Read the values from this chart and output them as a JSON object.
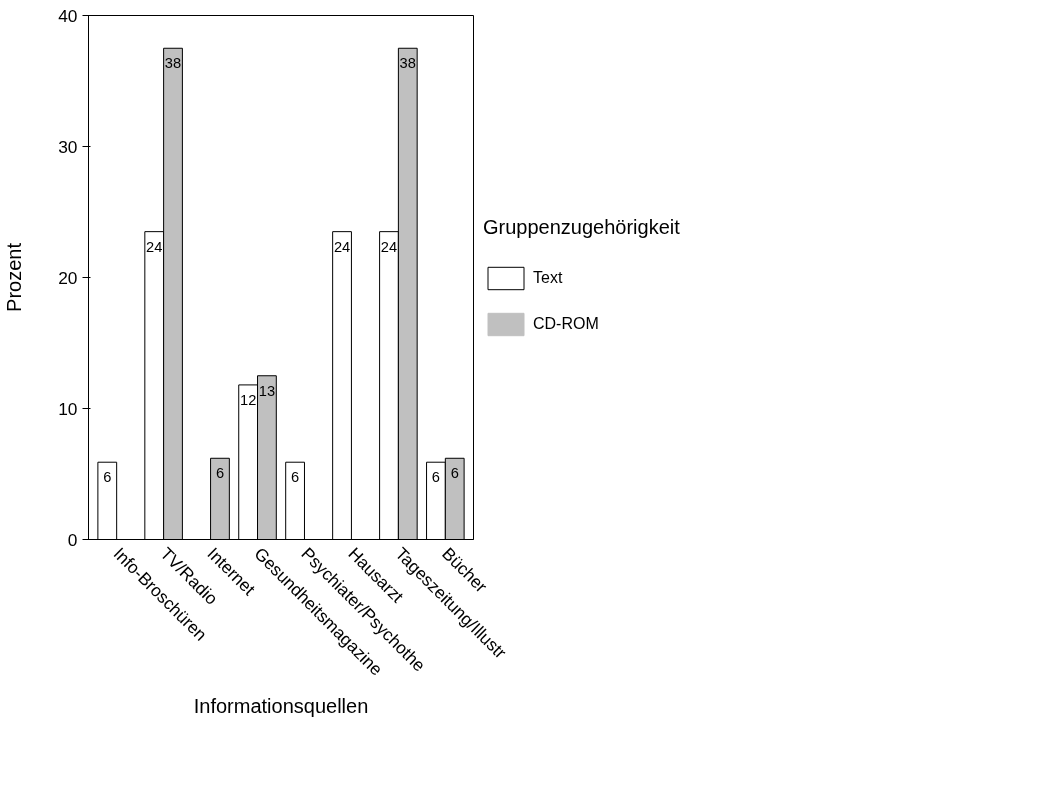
{
  "chart_data": {
    "type": "bar",
    "xlabel": "Informationsquellen",
    "ylabel": "Prozent",
    "legend_title": "Gruppenzugehörigkeit",
    "categories": [
      "Info-Broschüren",
      "TV/Radio",
      "Internet",
      "Gesundheitsmagazine",
      "Psychiater/Psychothe",
      "Hausarzt",
      "Tageszeitung/Illustr",
      "Bücher"
    ],
    "series": [
      {
        "name": "Text",
        "color": "#ffffff",
        "values": [
          5.9,
          23.5,
          0,
          11.8,
          5.9,
          23.5,
          23.5,
          5.9
        ],
        "value_labels": [
          "6",
          "24",
          null,
          "12",
          "6",
          "24",
          "24",
          "6"
        ]
      },
      {
        "name": "CD-ROM",
        "color": "#c0c0c0",
        "values": [
          0,
          37.5,
          6.2,
          12.5,
          0,
          0,
          37.5,
          6.2
        ],
        "value_labels": [
          null,
          "38",
          "6",
          "13",
          null,
          null,
          "38",
          "6"
        ]
      }
    ],
    "ylim": [
      0,
      40
    ],
    "yticks": [
      0,
      10,
      20,
      30,
      40
    ],
    "grid": false,
    "legend": "right"
  }
}
